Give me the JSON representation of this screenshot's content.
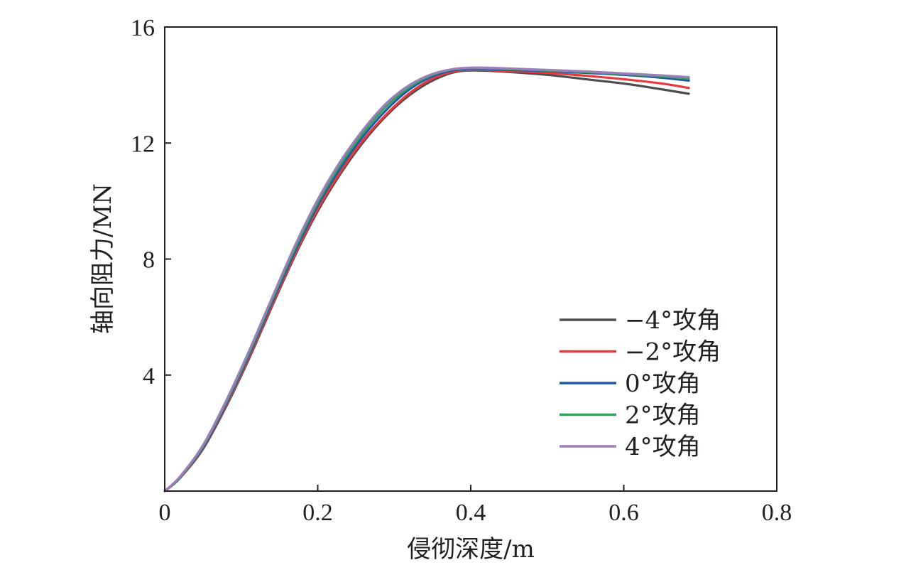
{
  "chart_data": {
    "type": "line",
    "title": "",
    "xlabel": "侵彻深度/m",
    "ylabel": "轴向阻力/MN",
    "xlim": [
      0,
      0.8
    ],
    "ylim": [
      0,
      16
    ],
    "xticks": [
      0,
      0.2,
      0.4,
      0.6,
      0.8
    ],
    "xtick_labels": [
      "0",
      "0.2",
      "0.4",
      "0.6",
      "0.8"
    ],
    "yticks": [
      4,
      8,
      12,
      16
    ],
    "ytick_labels": [
      "4",
      "8",
      "12",
      "16"
    ],
    "grid": false,
    "legend_position": "bottom-right",
    "series": [
      {
        "name": "−4°攻角",
        "color": "#4d4d4f",
        "x": [
          0,
          0.02,
          0.05,
          0.08,
          0.11,
          0.14,
          0.17,
          0.2,
          0.23,
          0.26,
          0.29,
          0.32,
          0.35,
          0.38,
          0.41,
          0.45,
          0.5,
          0.55,
          0.6,
          0.65,
          0.685
        ],
        "y": [
          0,
          0.45,
          1.45,
          2.9,
          4.55,
          6.35,
          8.1,
          9.65,
          10.95,
          12.05,
          12.95,
          13.65,
          14.15,
          14.45,
          14.5,
          14.45,
          14.35,
          14.2,
          14.05,
          13.85,
          13.7
        ]
      },
      {
        "name": "−2°攻角",
        "color": "#e8383d",
        "x": [
          0,
          0.02,
          0.05,
          0.08,
          0.11,
          0.14,
          0.17,
          0.2,
          0.23,
          0.26,
          0.29,
          0.32,
          0.35,
          0.38,
          0.41,
          0.45,
          0.5,
          0.55,
          0.6,
          0.65,
          0.685
        ],
        "y": [
          0,
          0.45,
          1.5,
          2.95,
          4.6,
          6.4,
          8.15,
          9.72,
          11.02,
          12.12,
          13.0,
          13.72,
          14.22,
          14.48,
          14.52,
          14.48,
          14.42,
          14.32,
          14.2,
          14.05,
          13.9
        ]
      },
      {
        "name": "0°攻角",
        "color": "#1f5aa6",
        "x": [
          0,
          0.02,
          0.05,
          0.08,
          0.11,
          0.14,
          0.17,
          0.2,
          0.23,
          0.26,
          0.29,
          0.32,
          0.35,
          0.38,
          0.41,
          0.45,
          0.5,
          0.55,
          0.6,
          0.65,
          0.685
        ],
        "y": [
          0,
          0.47,
          1.52,
          3.0,
          4.68,
          6.5,
          8.25,
          9.85,
          11.15,
          12.25,
          13.15,
          13.85,
          14.3,
          14.52,
          14.55,
          14.52,
          14.48,
          14.42,
          14.35,
          14.25,
          14.15
        ]
      },
      {
        "name": "2°攻角",
        "color": "#3a9e5f",
        "x": [
          0,
          0.02,
          0.05,
          0.08,
          0.11,
          0.14,
          0.17,
          0.2,
          0.23,
          0.26,
          0.29,
          0.32,
          0.35,
          0.38,
          0.41,
          0.45,
          0.5,
          0.55,
          0.6,
          0.65,
          0.685
        ],
        "y": [
          0,
          0.48,
          1.55,
          3.05,
          4.75,
          6.58,
          8.35,
          9.95,
          11.27,
          12.37,
          13.27,
          13.93,
          14.35,
          14.55,
          14.58,
          14.55,
          14.5,
          14.45,
          14.38,
          14.3,
          14.22
        ]
      },
      {
        "name": "4°攻角",
        "color": "#9a7fb8",
        "x": [
          0,
          0.02,
          0.05,
          0.08,
          0.11,
          0.14,
          0.17,
          0.2,
          0.23,
          0.26,
          0.29,
          0.32,
          0.35,
          0.38,
          0.41,
          0.45,
          0.5,
          0.55,
          0.6,
          0.65,
          0.685
        ],
        "y": [
          0,
          0.5,
          1.58,
          3.1,
          4.82,
          6.65,
          8.45,
          10.05,
          11.38,
          12.48,
          13.38,
          14.0,
          14.38,
          14.56,
          14.6,
          14.57,
          14.52,
          14.47,
          14.4,
          14.33,
          14.27
        ]
      }
    ]
  }
}
